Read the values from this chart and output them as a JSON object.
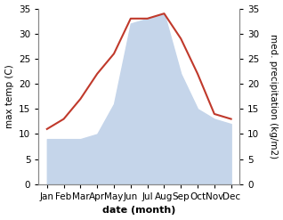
{
  "months": [
    "Jan",
    "Feb",
    "Mar",
    "Apr",
    "May",
    "Jun",
    "Jul",
    "Aug",
    "Sep",
    "Oct",
    "Nov",
    "Dec"
  ],
  "temperature": [
    11,
    13,
    17,
    22,
    26,
    33,
    33,
    34,
    29,
    22,
    14,
    13
  ],
  "precipitation": [
    9,
    9,
    9,
    10,
    16,
    32,
    33,
    34,
    22,
    15,
    13,
    12
  ],
  "temp_color": "#c0392b",
  "precip_color": "#c5d5ea",
  "background_color": "#ffffff",
  "xlabel": "date (month)",
  "ylabel_left": "max temp (C)",
  "ylabel_right": "med. precipitation (kg/m2)",
  "ylim": [
    0,
    35
  ],
  "yticks": [
    0,
    5,
    10,
    15,
    20,
    25,
    30,
    35
  ],
  "xlabel_fontsize": 8,
  "ylabel_fontsize": 7.5,
  "tick_fontsize": 7.5
}
